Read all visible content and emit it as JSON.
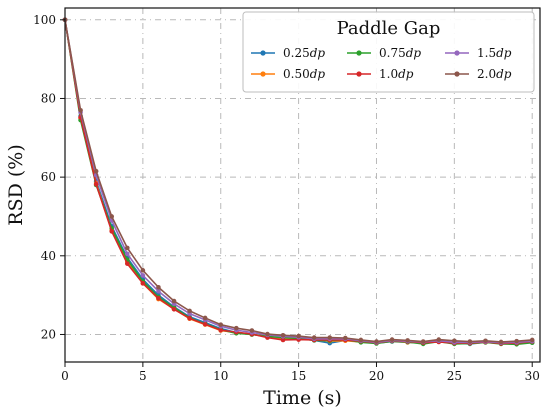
{
  "chart_data": {
    "type": "line",
    "title": "",
    "xlabel": "Time (s)",
    "ylabel": "RSD (%)",
    "xlim": [
      0,
      30.5
    ],
    "ylim": [
      13,
      103
    ],
    "xticks": [
      0,
      5,
      10,
      15,
      20,
      25,
      30
    ],
    "yticks": [
      20,
      40,
      60,
      80,
      100
    ],
    "grid": true,
    "legend": {
      "title": "Paddle Gap",
      "placement": "top-right",
      "columns": 3
    },
    "x": [
      0,
      1,
      2,
      3,
      4,
      5,
      6,
      7,
      8,
      9,
      10,
      11,
      12,
      13,
      14,
      15,
      16,
      17,
      18,
      19,
      20,
      21,
      22,
      23,
      24,
      25,
      26,
      27,
      28,
      29,
      30
    ],
    "series": [
      {
        "name": "0.25dp",
        "label_main": "0.25",
        "label_unit": "dp",
        "color": "#1f77b4",
        "values": [
          100,
          75.5,
          59,
          47.5,
          39.5,
          34,
          30,
          27,
          24.5,
          23,
          21.5,
          20.5,
          20,
          19.5,
          19,
          19,
          18.5,
          17.8,
          18.5,
          18.2,
          17.8,
          18.2,
          18,
          17.8,
          18.3,
          17.8,
          17.6,
          18,
          17.7,
          17.7,
          18
        ]
      },
      {
        "name": "0.50dp",
        "label_main": "0.50",
        "label_unit": "dp",
        "color": "#ff7f0e",
        "values": [
          100,
          75,
          58.5,
          46.5,
          38.5,
          33,
          29,
          26.5,
          24,
          22.5,
          21,
          20.5,
          20,
          19.5,
          19,
          18.8,
          18.6,
          18.3,
          18.4,
          18.1,
          17.9,
          18.3,
          18,
          17.9,
          18.2,
          17.9,
          17.7,
          18,
          17.8,
          17.8,
          18.1
        ]
      },
      {
        "name": "0.75dp",
        "label_main": "0.75",
        "label_unit": "dp",
        "color": "#2ca02c",
        "values": [
          100,
          74.5,
          58,
          47,
          39,
          33.5,
          29.5,
          26.8,
          24.2,
          22.7,
          21.2,
          20.3,
          20,
          19.5,
          19.2,
          19,
          18.5,
          18.4,
          18.7,
          18,
          17.7,
          18.3,
          18.1,
          17.6,
          18.2,
          17.6,
          17.7,
          18,
          17.6,
          17.5,
          17.9
        ]
      },
      {
        "name": "1.0dp",
        "label_main": "1.0",
        "label_unit": "dp",
        "color": "#d62728",
        "values": [
          100,
          75.2,
          58.2,
          46.2,
          38,
          33,
          29.2,
          26.4,
          24.1,
          22.6,
          21.1,
          20.6,
          20.1,
          19.2,
          18.6,
          18.7,
          18.6,
          18.6,
          18.6,
          18.3,
          17.9,
          18.4,
          18.2,
          17.9,
          18.1,
          17.8,
          17.8,
          18.1,
          17.7,
          17.8,
          18.2
        ]
      },
      {
        "name": "1.5dp",
        "label_main": "1.5",
        "label_unit": "dp",
        "color": "#9467bd",
        "values": [
          100,
          76.5,
          60.5,
          49,
          40.5,
          35,
          31,
          27.8,
          25.3,
          23.7,
          22.1,
          21.1,
          20.5,
          19.9,
          19.5,
          19.3,
          18.9,
          18.9,
          18.9,
          18.4,
          18,
          18.5,
          18.3,
          18.1,
          18.4,
          18,
          18,
          18.2,
          17.9,
          18,
          18.3
        ]
      },
      {
        "name": "2.0dp",
        "label_main": "2.0",
        "label_unit": "dp",
        "color": "#8c564b",
        "values": [
          100,
          77,
          61.5,
          50,
          42,
          36.3,
          32,
          28.5,
          26,
          24.2,
          22.5,
          21.6,
          21,
          20.1,
          19.8,
          19.6,
          19.2,
          19.2,
          19.1,
          18.6,
          18.2,
          18.7,
          18.5,
          18.2,
          18.7,
          18.4,
          18.2,
          18.4,
          18.1,
          18.3,
          18.6
        ]
      }
    ]
  }
}
